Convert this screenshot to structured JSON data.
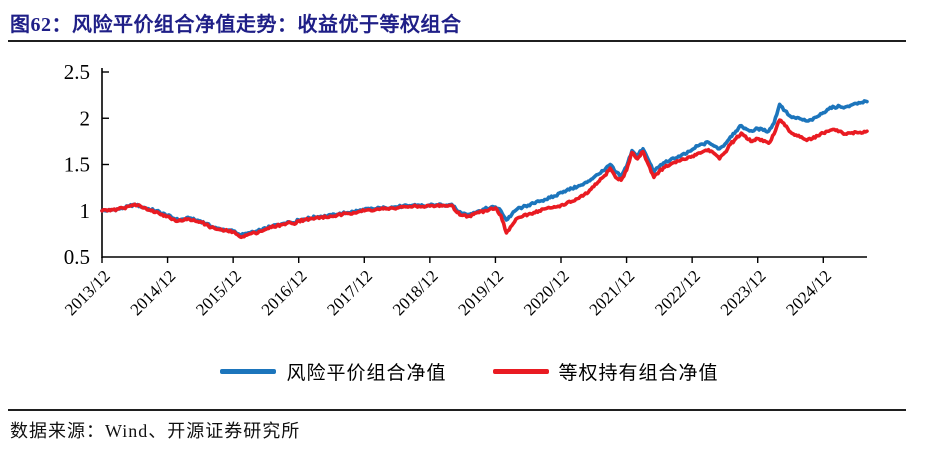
{
  "header": {
    "title": "图62：风险平价组合净值走势：收益优于等权组合"
  },
  "footer": {
    "source": "数据来源：Wind、开源证券研究所"
  },
  "colors": {
    "title_navy": "#1F1F87",
    "rule_dark": "#1f1f1f",
    "axis_black": "#000000",
    "series_blue": "#1C75BC",
    "series_red": "#E91B22"
  },
  "chart_data": {
    "type": "line",
    "title": "风险平价组合净值走势",
    "xlabel": "",
    "ylabel": "",
    "ylim": [
      0.5,
      2.5
    ],
    "grid": false,
    "legend_position": "bottom",
    "x_start": "2013/12",
    "x_end": "2025/08",
    "x_step": "monthly",
    "x_tick_labels": [
      "2013/12",
      "2014/12",
      "2015/12",
      "2016/12",
      "2017/12",
      "2018/12",
      "2019/12",
      "2020/12",
      "2021/12",
      "2022/12",
      "2023/12",
      "2024/12"
    ],
    "y_ticks": [
      {
        "v": 0.5,
        "label": "0.5"
      },
      {
        "v": 1.0,
        "label": "1"
      },
      {
        "v": 1.5,
        "label": "1.5"
      },
      {
        "v": 2.0,
        "label": "2"
      },
      {
        "v": 2.5,
        "label": "2.5"
      }
    ],
    "series": [
      {
        "name": "风险平价组合净值",
        "key": "risk-parity",
        "color": "#1C75BC",
        "values": [
          1.0,
          1.0,
          1.01,
          1.02,
          1.03,
          1.05,
          1.07,
          1.05,
          1.03,
          1.01,
          1.0,
          0.97,
          0.95,
          0.92,
          0.9,
          0.91,
          0.92,
          0.9,
          0.89,
          0.86,
          0.83,
          0.81,
          0.8,
          0.79,
          0.78,
          0.75,
          0.74,
          0.76,
          0.77,
          0.79,
          0.81,
          0.83,
          0.85,
          0.86,
          0.88,
          0.87,
          0.9,
          0.91,
          0.92,
          0.93,
          0.94,
          0.94,
          0.95,
          0.96,
          0.97,
          0.98,
          0.99,
          1.0,
          1.01,
          1.02,
          1.02,
          1.03,
          1.03,
          1.04,
          1.04,
          1.05,
          1.05,
          1.06,
          1.06,
          1.05,
          1.06,
          1.06,
          1.07,
          1.06,
          1.07,
          1.0,
          0.97,
          0.96,
          0.98,
          1.0,
          1.02,
          1.03,
          1.04,
          1.0,
          0.9,
          0.96,
          1.02,
          1.04,
          1.06,
          1.08,
          1.1,
          1.12,
          1.14,
          1.16,
          1.2,
          1.22,
          1.24,
          1.26,
          1.28,
          1.32,
          1.36,
          1.4,
          1.44,
          1.5,
          1.42,
          1.38,
          1.48,
          1.65,
          1.6,
          1.67,
          1.55,
          1.42,
          1.48,
          1.52,
          1.55,
          1.57,
          1.6,
          1.62,
          1.66,
          1.7,
          1.72,
          1.74,
          1.7,
          1.67,
          1.72,
          1.8,
          1.86,
          1.92,
          1.88,
          1.86,
          1.89,
          1.87,
          1.86,
          1.95,
          2.15,
          2.08,
          2.02,
          2.0,
          1.99,
          1.97,
          1.98,
          2.02,
          2.06,
          2.1,
          2.12,
          2.13,
          2.12,
          2.14,
          2.16,
          2.17,
          2.18
        ]
      },
      {
        "name": "等权持有组合净值",
        "key": "equal-weight",
        "color": "#E91B22",
        "values": [
          1.0,
          1.0,
          1.01,
          1.02,
          1.03,
          1.05,
          1.07,
          1.05,
          1.03,
          1.0,
          0.99,
          0.96,
          0.94,
          0.91,
          0.89,
          0.9,
          0.91,
          0.89,
          0.88,
          0.85,
          0.82,
          0.8,
          0.79,
          0.78,
          0.77,
          0.73,
          0.72,
          0.75,
          0.76,
          0.78,
          0.8,
          0.82,
          0.84,
          0.85,
          0.87,
          0.86,
          0.89,
          0.9,
          0.91,
          0.92,
          0.93,
          0.93,
          0.94,
          0.95,
          0.96,
          0.97,
          0.98,
          0.99,
          1.0,
          1.01,
          1.01,
          1.02,
          1.02,
          1.03,
          1.03,
          1.04,
          1.04,
          1.05,
          1.05,
          1.04,
          1.05,
          1.05,
          1.06,
          1.05,
          1.06,
          0.98,
          0.95,
          0.94,
          0.96,
          0.98,
          1.0,
          1.02,
          1.03,
          0.95,
          0.76,
          0.84,
          0.92,
          0.94,
          0.96,
          0.98,
          1.0,
          1.02,
          1.03,
          1.04,
          1.06,
          1.08,
          1.1,
          1.13,
          1.16,
          1.2,
          1.26,
          1.32,
          1.38,
          1.46,
          1.36,
          1.33,
          1.44,
          1.63,
          1.56,
          1.64,
          1.5,
          1.36,
          1.43,
          1.47,
          1.5,
          1.52,
          1.55,
          1.56,
          1.59,
          1.62,
          1.64,
          1.66,
          1.62,
          1.56,
          1.63,
          1.72,
          1.78,
          1.84,
          1.78,
          1.75,
          1.78,
          1.75,
          1.73,
          1.83,
          1.98,
          1.92,
          1.85,
          1.82,
          1.8,
          1.76,
          1.78,
          1.81,
          1.84,
          1.86,
          1.88,
          1.86,
          1.83,
          1.84,
          1.85,
          1.84,
          1.86
        ]
      }
    ]
  }
}
